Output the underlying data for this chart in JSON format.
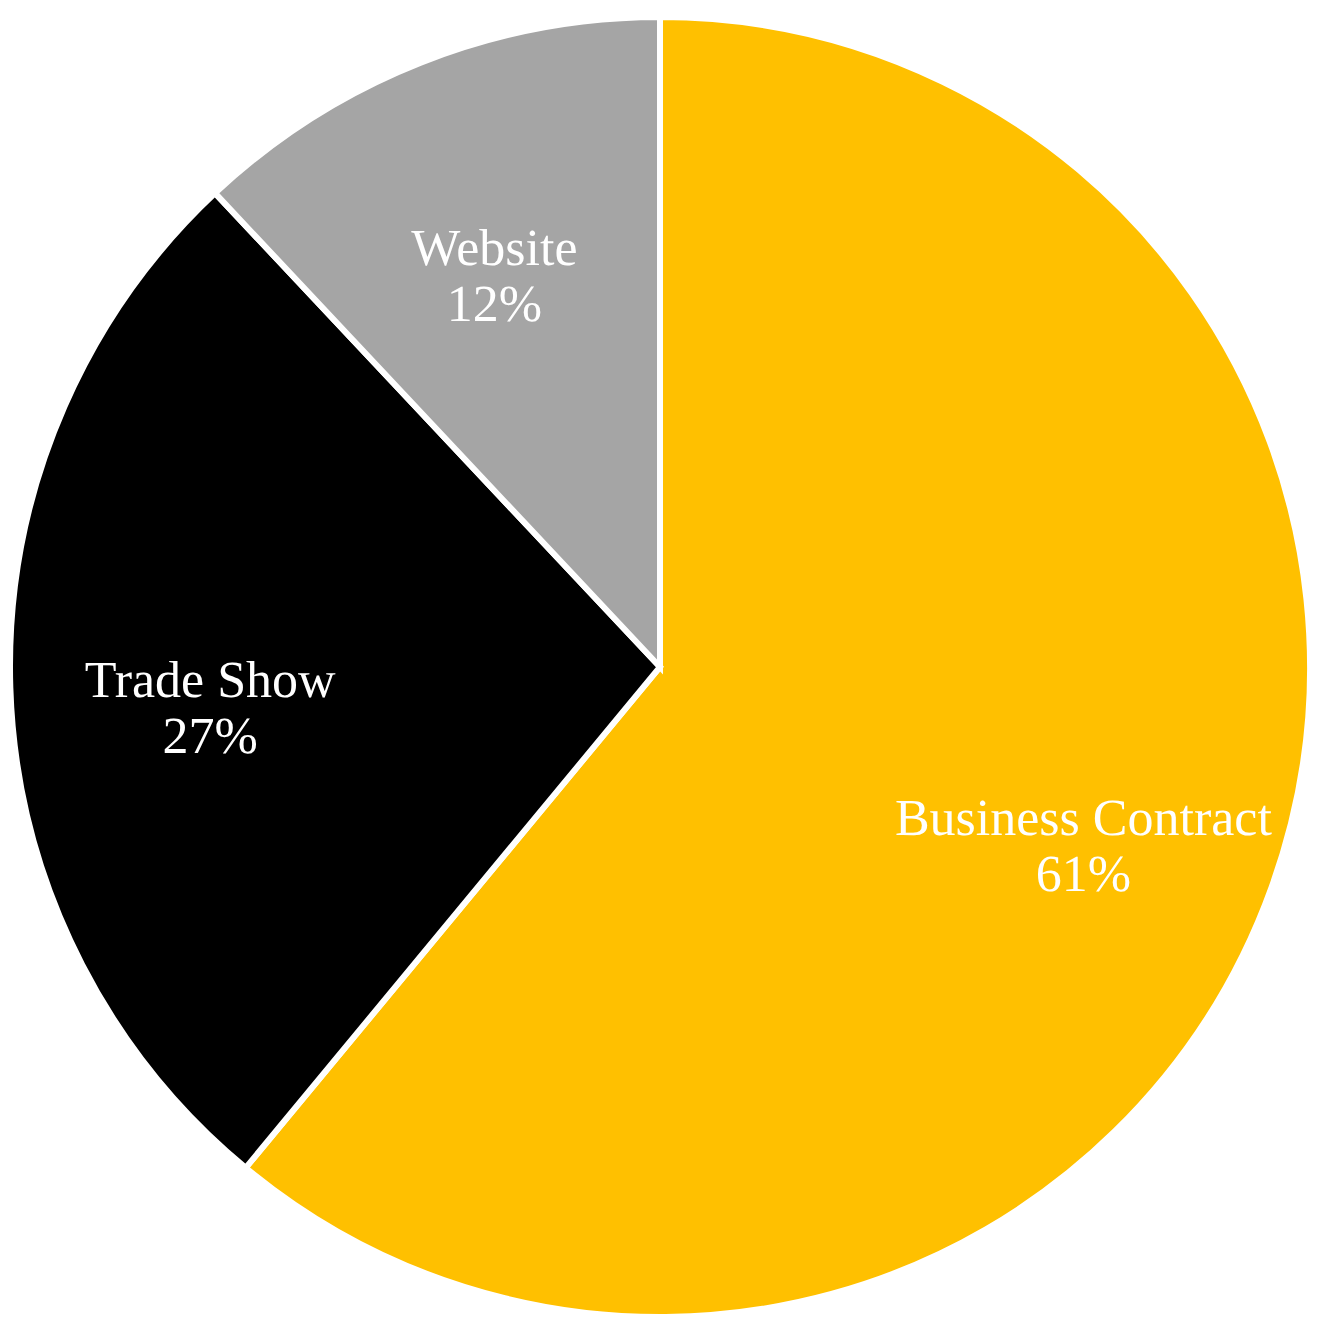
{
  "chart_data": {
    "type": "pie",
    "categories": [
      "Business Contract",
      "Trade Show",
      "Website"
    ],
    "values": [
      61,
      27,
      12
    ],
    "value_labels": [
      "61%",
      "27%",
      "12%"
    ],
    "colors": [
      "#ffc000",
      "#000000",
      "#a5a5a5"
    ]
  }
}
